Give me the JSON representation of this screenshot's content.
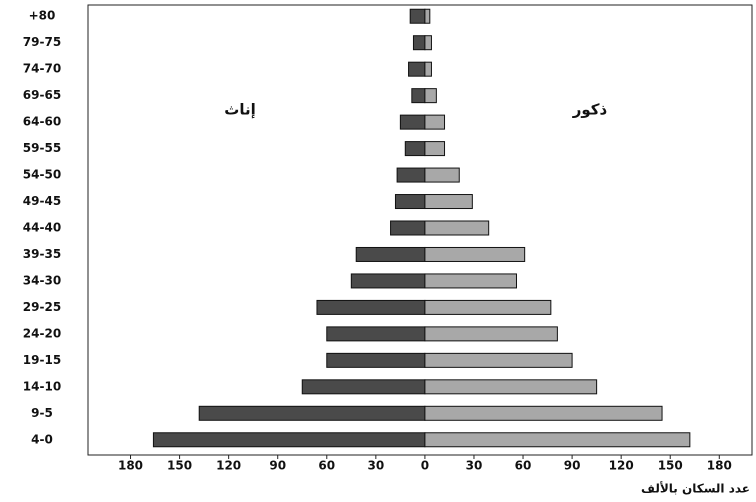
{
  "chart_data": {
    "type": "pyramid",
    "categories": [
      "4-0",
      "9-5",
      "14-10",
      "19-15",
      "24-20",
      "29-25",
      "34-30",
      "39-35",
      "44-40",
      "49-45",
      "54-50",
      "59-55",
      "64-60",
      "69-65",
      "74-70",
      "79-75",
      "+80"
    ],
    "series": [
      {
        "name": "إناث",
        "color": "#4a4a4a",
        "values": [
          -166,
          -138,
          -75,
          -60,
          -60,
          -66,
          -45,
          -42,
          -21,
          -18,
          -17,
          -12,
          -15,
          -8,
          -10,
          -7,
          -9
        ]
      },
      {
        "name": "ذكور",
        "color": "#a8a8a8",
        "values": [
          162,
          145,
          105,
          90,
          81,
          77,
          56,
          61,
          39,
          29,
          21,
          12,
          12,
          7,
          4,
          4,
          3
        ]
      }
    ],
    "xlim": [
      -206,
      200
    ],
    "xticks": [
      {
        "value": -180,
        "label": "180"
      },
      {
        "value": -150,
        "label": "150"
      },
      {
        "value": -120,
        "label": "120"
      },
      {
        "value": -90,
        "label": "90"
      },
      {
        "value": -60,
        "label": "60"
      },
      {
        "value": -30,
        "label": "30"
      },
      0,
      30,
      60,
      90,
      120,
      150,
      180
    ],
    "xlabel": "عدد السكان بالألف"
  }
}
